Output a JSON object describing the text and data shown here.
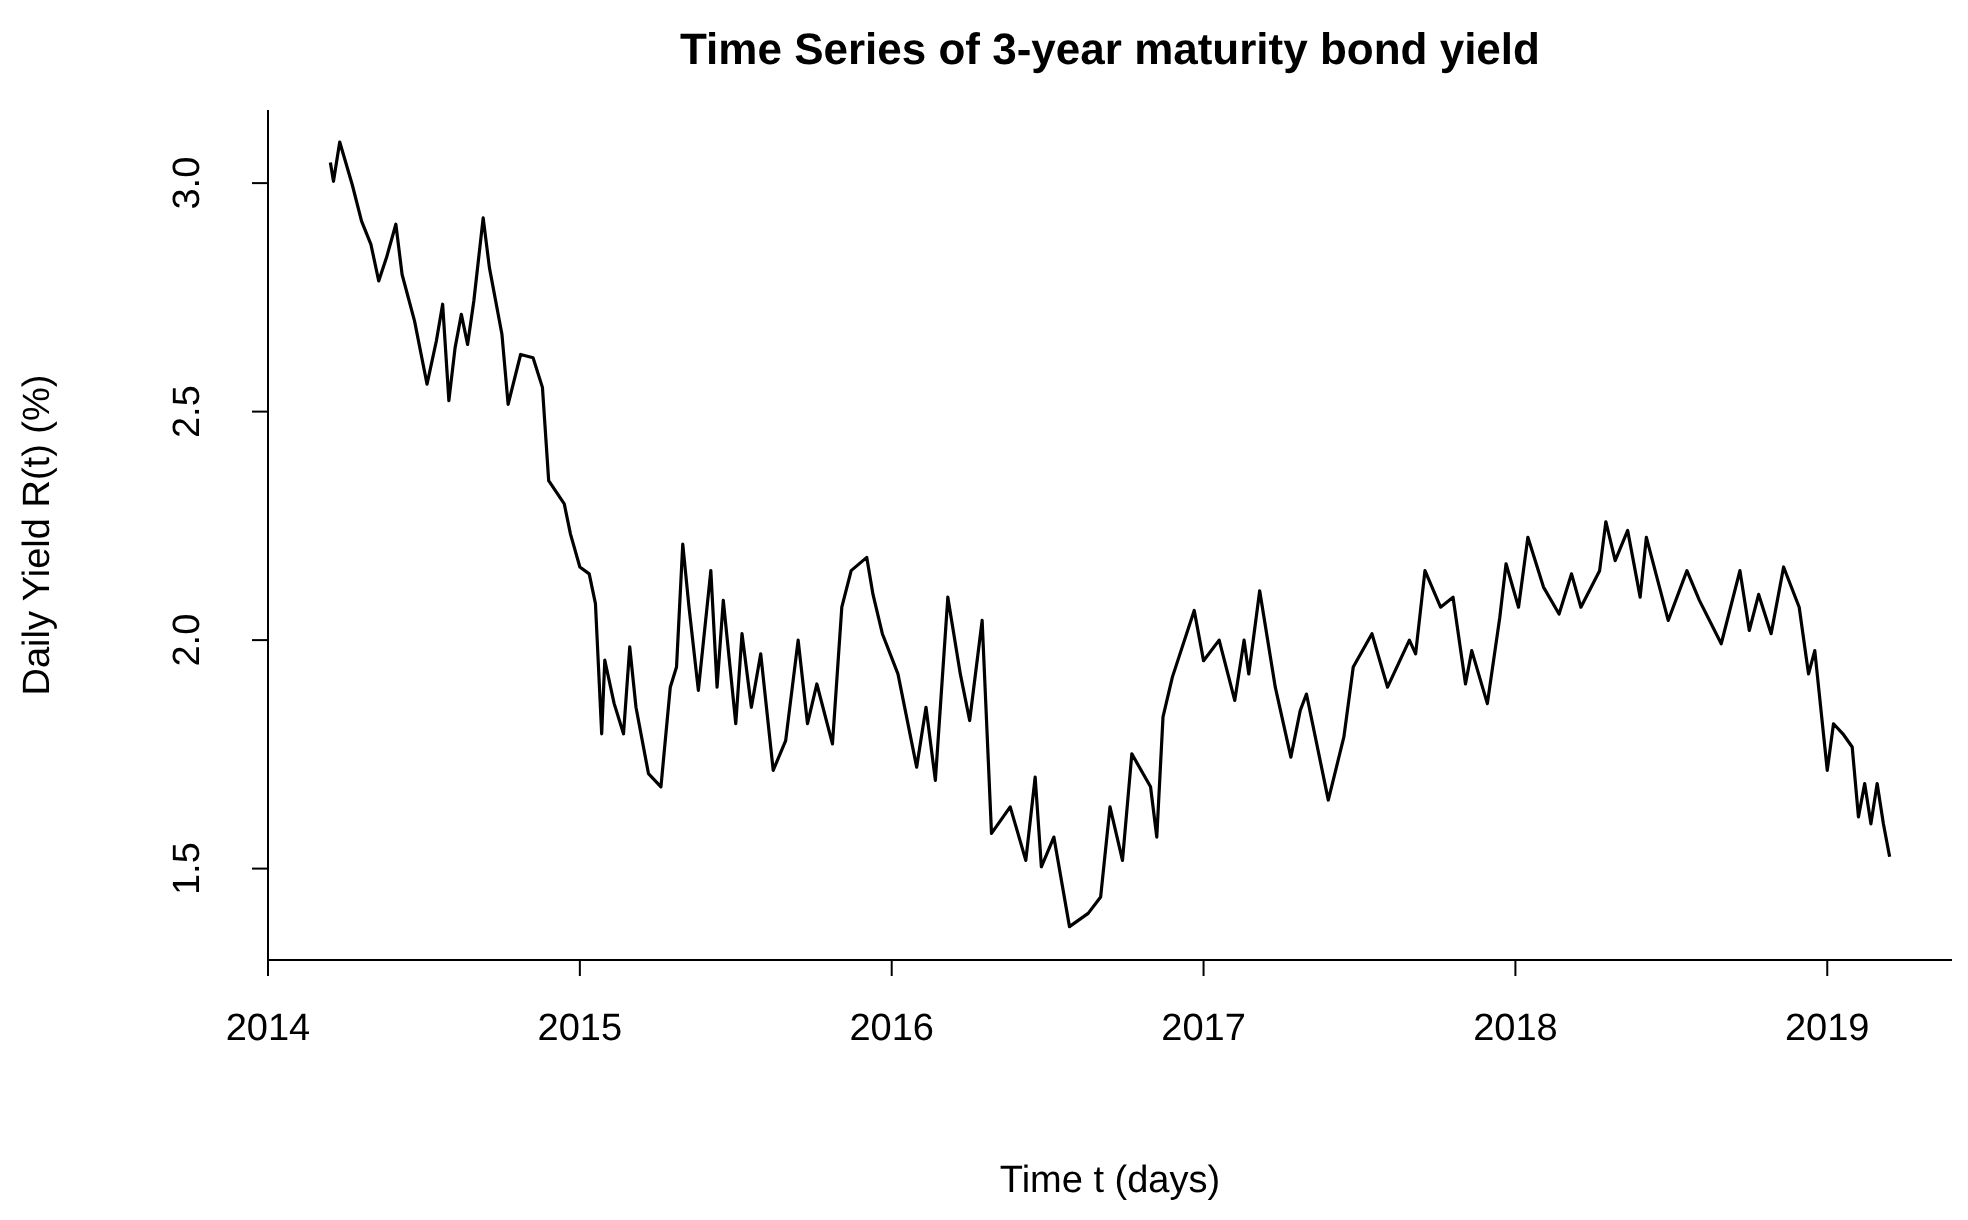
{
  "chart_data": {
    "type": "line",
    "title": "Time Series of 3-year maturity bond yield",
    "xlabel": "Time t (days)",
    "ylabel": "Daily Yield R(t) (%)",
    "color": "#000000",
    "x": [
      2014.2,
      2014.21,
      2014.23,
      2014.27,
      2014.3,
      2014.33,
      2014.355,
      2014.38,
      2014.41,
      2014.43,
      2014.47,
      2014.51,
      2014.54,
      2014.56,
      2014.58,
      2014.6,
      2014.62,
      2014.64,
      2014.66,
      2014.69,
      2014.71,
      2014.75,
      2014.77,
      2014.81,
      2014.85,
      2014.88,
      2014.9,
      2014.95,
      2014.97,
      2015.0,
      2015.03,
      2015.05,
      2015.07,
      2015.08,
      2015.11,
      2015.14,
      2015.16,
      2015.18,
      2015.22,
      2015.26,
      2015.29,
      2015.31,
      2015.33,
      2015.35,
      2015.38,
      2015.42,
      2015.44,
      2015.46,
      2015.5,
      2015.52,
      2015.55,
      2015.58,
      2015.62,
      2015.66,
      2015.7,
      2015.73,
      2015.76,
      2015.81,
      2015.84,
      2015.87,
      2015.92,
      2015.94,
      2015.97,
      2016.02,
      2016.08,
      2016.11,
      2016.14,
      2016.18,
      2016.22,
      2016.25,
      2016.29,
      2016.32,
      2016.38,
      2016.43,
      2016.46,
      2016.48,
      2016.52,
      2016.57,
      2016.63,
      2016.67,
      2016.7,
      2016.74,
      2016.77,
      2016.83,
      2016.85,
      2016.87,
      2016.9,
      2016.97,
      2017.0,
      2017.05,
      2017.1,
      2017.13,
      2017.145,
      2017.18,
      2017.23,
      2017.28,
      2017.31,
      2017.33,
      2017.4,
      2017.45,
      2017.48,
      2017.54,
      2017.59,
      2017.66,
      2017.68,
      2017.71,
      2017.76,
      2017.8,
      2017.84,
      2017.86,
      2017.91,
      2017.95,
      2017.97,
      2018.01,
      2018.04,
      2018.09,
      2018.14,
      2018.18,
      2018.21,
      2018.27,
      2018.29,
      2018.32,
      2018.36,
      2018.4,
      2018.42,
      2018.49,
      2018.55,
      2018.59,
      2018.66,
      2018.72,
      2018.75,
      2018.78,
      2018.82,
      2018.86,
      2018.91,
      2018.94,
      2018.96,
      2019.0,
      2019.02,
      2019.05,
      2019.08,
      2019.1,
      2019.12,
      2019.14,
      2019.16,
      2019.18,
      2019.2
    ],
    "values": [
      3.045,
      3.004,
      3.09,
      2.997,
      2.917,
      2.866,
      2.786,
      2.837,
      2.91,
      2.8,
      2.698,
      2.56,
      2.655,
      2.735,
      2.524,
      2.64,
      2.713,
      2.647,
      2.742,
      2.924,
      2.815,
      2.67,
      2.516,
      2.625,
      2.618,
      2.553,
      2.349,
      2.298,
      2.232,
      2.16,
      2.145,
      2.08,
      1.795,
      1.956,
      1.861,
      1.795,
      1.985,
      1.853,
      1.708,
      1.679,
      1.897,
      1.941,
      2.21,
      2.072,
      1.89,
      2.152,
      1.897,
      2.087,
      1.817,
      2.014,
      1.853,
      1.97,
      1.715,
      1.78,
      2.0,
      1.817,
      1.904,
      1.773,
      2.072,
      2.152,
      2.181,
      2.1,
      2.014,
      1.926,
      1.722,
      1.853,
      1.693,
      2.094,
      1.926,
      1.824,
      2.043,
      1.577,
      1.635,
      1.518,
      1.7,
      1.504,
      1.569,
      1.373,
      1.402,
      1.438,
      1.635,
      1.518,
      1.751,
      1.679,
      1.569,
      1.832,
      1.919,
      2.065,
      1.955,
      2.0,
      1.868,
      2.0,
      1.926,
      2.108,
      1.897,
      1.744,
      1.846,
      1.882,
      1.65,
      1.788,
      1.941,
      2.014,
      1.897,
      2.0,
      1.97,
      2.152,
      2.072,
      2.094,
      1.904,
      1.977,
      1.861,
      2.05,
      2.167,
      2.072,
      2.225,
      2.116,
      2.057,
      2.145,
      2.072,
      2.152,
      2.259,
      2.174,
      2.24,
      2.094,
      2.225,
      2.043,
      2.152,
      2.087,
      1.992,
      2.152,
      2.021,
      2.1,
      2.014,
      2.16,
      2.072,
      1.926,
      1.977,
      1.715,
      1.817,
      1.795,
      1.766,
      1.613,
      1.686,
      1.598,
      1.686,
      1.598,
      1.526
    ],
    "xlim": [
      2014.0,
      2019.4
    ],
    "xticks": [
      2014,
      2015,
      2016,
      2017,
      2018,
      2019
    ],
    "ylim": [
      1.3,
      3.16
    ],
    "yticks": [
      {
        "value": 1.5,
        "label": "1.5"
      },
      {
        "value": 2.0,
        "label": "2.0"
      },
      {
        "value": 2.5,
        "label": "2.5"
      },
      {
        "value": 3.0,
        "label": "3.0"
      }
    ]
  }
}
